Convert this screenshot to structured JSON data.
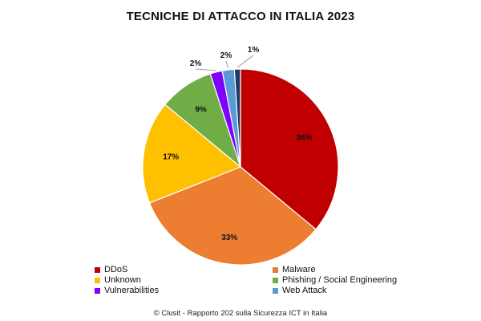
{
  "chart_data": {
    "type": "pie",
    "title": "TECNICHE DI ATTACCO IN ITALIA 2023",
    "slices": [
      {
        "name": "DDoS",
        "value": 36,
        "label": "36%",
        "color": "#C00000"
      },
      {
        "name": "Malware",
        "value": 33,
        "label": "33%",
        "color": "#ED7D31"
      },
      {
        "name": "Unknown",
        "value": 17,
        "label": "17%",
        "color": "#FFC000"
      },
      {
        "name": "Phishing / Social Engineering",
        "value": 9,
        "label": "9%",
        "color": "#70AD47"
      },
      {
        "name": "Vulnerabilities",
        "value": 2,
        "label": "2%",
        "color": "#7F00FF"
      },
      {
        "name": "Web Attack",
        "value": 2,
        "label": "2%",
        "color": "#5B9BD5"
      },
      {
        "name": "",
        "value": 1,
        "label": "1%",
        "color": "#203864"
      }
    ],
    "start": "12 o'clock",
    "direction": "clockwise",
    "legend_position": "bottom"
  },
  "footer": "© Clusit - Rapporto 202 sulla Sicurezza ICT in Italia"
}
